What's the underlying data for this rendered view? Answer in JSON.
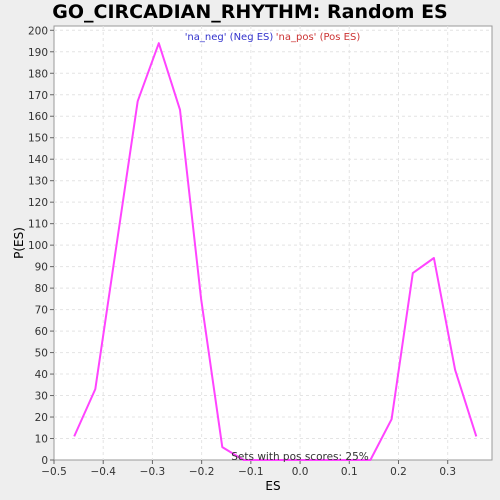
{
  "chart_data": {
    "type": "line",
    "title": "GO_CIRCADIAN_RHYTHM: Random ES distribution",
    "xlabel": "ES",
    "ylabel": "P(ES)",
    "xlim": [
      -0.5,
      0.39
    ],
    "ylim": [
      0,
      202
    ],
    "xticks": [
      -0.5,
      -0.4,
      -0.3,
      -0.2,
      -0.1,
      0.0,
      0.1,
      0.2,
      0.3
    ],
    "xtick_labels": [
      "−0.5",
      "−0.4",
      "−0.3",
      "−0.2",
      "−0.1",
      "0.0",
      "0.1",
      "0.2",
      "0.3"
    ],
    "yticks": [
      0,
      10,
      20,
      30,
      40,
      50,
      60,
      70,
      80,
      90,
      100,
      110,
      120,
      130,
      140,
      150,
      160,
      170,
      180,
      190,
      200
    ],
    "grid": true,
    "legend": {
      "placement": "top-center",
      "entries": [
        {
          "label": "'na_neg' (Neg ES)",
          "color": "#3333cc"
        },
        {
          "label": "'na_pos' (Pos ES)",
          "color": "#cc3333"
        }
      ]
    },
    "annotation": "Sets with pos scores: 25%",
    "line_color": "#ff44ff",
    "series": [
      {
        "x": [
          -0.459,
          -0.416,
          -0.373,
          -0.33,
          -0.287,
          -0.244,
          -0.201,
          -0.158,
          -0.115,
          -0.072,
          -0.029,
          0.014,
          0.057,
          0.1,
          0.143,
          0.186,
          0.229,
          0.272,
          0.315,
          0.358
        ],
        "y": [
          11,
          33,
          100,
          167,
          194,
          163,
          75,
          6,
          0,
          0,
          0,
          0,
          0,
          0,
          0,
          19,
          87,
          94,
          42,
          11
        ]
      }
    ]
  }
}
